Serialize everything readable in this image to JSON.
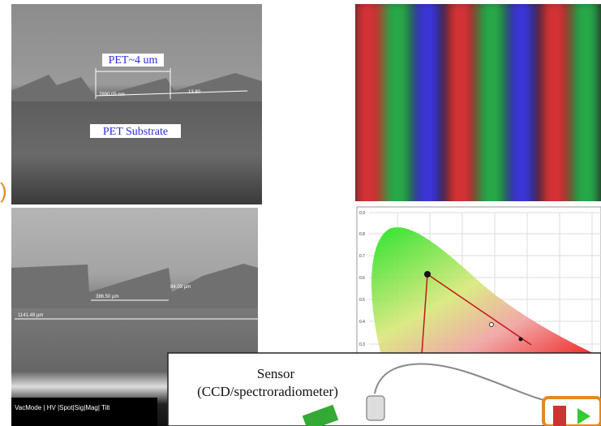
{
  "sem_top": {
    "label_layer": "PET~4 um",
    "label_substrate": "PET Substrate",
    "measure_width": "7890.05 nm",
    "measure_angle": "13.80"
  },
  "side_mark": ")",
  "sem_bottom": {
    "measure_period": "386.50 µm",
    "measure_height": "84.03 µm",
    "measure_total": "1141.49 µm",
    "footer": "VacMode | HV |Spot|Sig|Mag| Tilt"
  },
  "chromaticity": {
    "y_labels": [
      "0.9",
      "0.8",
      "0.7",
      "0.6",
      "0.5",
      "0.4",
      "0.3"
    ]
  },
  "setup": {
    "sensor": "Sensor",
    "sensor_detail": "(CCD/spectroradiometer)"
  }
}
